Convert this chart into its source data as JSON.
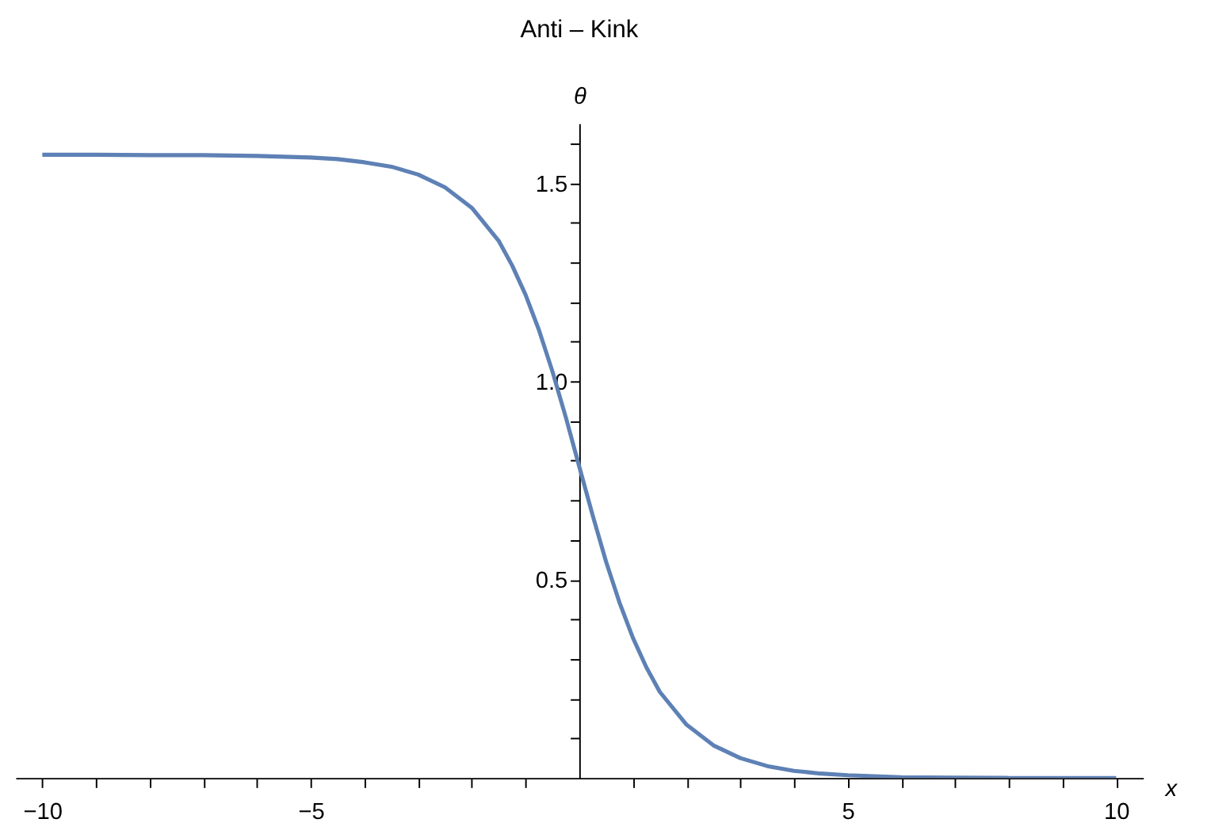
{
  "chart_data": {
    "type": "line",
    "title": "Anti – Kink",
    "xlabel": "x",
    "ylabel": "θ",
    "x": [
      -10,
      -9,
      -8,
      -7,
      -6,
      -5,
      -4.5,
      -4,
      -3.5,
      -3,
      -2.5,
      -2,
      -1.5,
      -1.25,
      -1,
      -0.75,
      -0.5,
      -0.25,
      0,
      0.25,
      0.5,
      0.75,
      1,
      1.25,
      1.5,
      2,
      2.5,
      3,
      3.5,
      4,
      4.5,
      5,
      6,
      7,
      8,
      9,
      10
    ],
    "series": [
      {
        "color": "#5e81b5",
        "values": [
          1.571,
          1.571,
          1.57,
          1.57,
          1.568,
          1.564,
          1.56,
          1.552,
          1.541,
          1.521,
          1.489,
          1.437,
          1.354,
          1.292,
          1.218,
          1.129,
          1.025,
          0.909,
          0.785,
          0.662,
          0.545,
          0.442,
          0.353,
          0.279,
          0.217,
          0.134,
          0.082,
          0.05,
          0.03,
          0.018,
          0.011,
          0.007,
          0.002,
          0.001,
          0.0,
          0.0,
          0.0
        ]
      }
    ],
    "xlim": [
      -10.5,
      10.5
    ],
    "ylim": [
      0,
      1.65
    ],
    "xticks": [
      {
        "value": -10,
        "label": "−10"
      },
      {
        "value": -9,
        "label": null
      },
      {
        "value": -8,
        "label": null
      },
      {
        "value": -7,
        "label": null
      },
      {
        "value": -6,
        "label": null
      },
      {
        "value": -5,
        "label": "−5"
      },
      {
        "value": -4,
        "label": null
      },
      {
        "value": -3,
        "label": null
      },
      {
        "value": -2,
        "label": null
      },
      {
        "value": -1,
        "label": null
      },
      {
        "value": 1,
        "label": null
      },
      {
        "value": 2,
        "label": null
      },
      {
        "value": 3,
        "label": null
      },
      {
        "value": 4,
        "label": null
      },
      5,
      {
        "value": 6,
        "label": null
      },
      {
        "value": 7,
        "label": null
      },
      {
        "value": 8,
        "label": null
      },
      {
        "value": 9,
        "label": null
      },
      10
    ],
    "yticks": [
      {
        "value": 0.1,
        "label": null
      },
      {
        "value": 0.2,
        "label": null
      },
      {
        "value": 0.3,
        "label": null
      },
      {
        "value": 0.4,
        "label": null
      },
      0.5,
      {
        "value": 0.6,
        "label": null
      },
      {
        "value": 0.7,
        "label": null
      },
      {
        "value": 0.8,
        "label": null
      },
      {
        "value": 0.9,
        "label": null
      },
      {
        "value": 1,
        "label": "1.0"
      },
      {
        "value": 1.1,
        "label": null
      },
      {
        "value": 1.2,
        "label": null
      },
      {
        "value": 1.3,
        "label": null
      },
      {
        "value": 1.4,
        "label": null
      },
      1.5,
      {
        "value": 1.6,
        "label": null
      }
    ],
    "grid": false,
    "line_style": "solid",
    "marker": "none"
  }
}
